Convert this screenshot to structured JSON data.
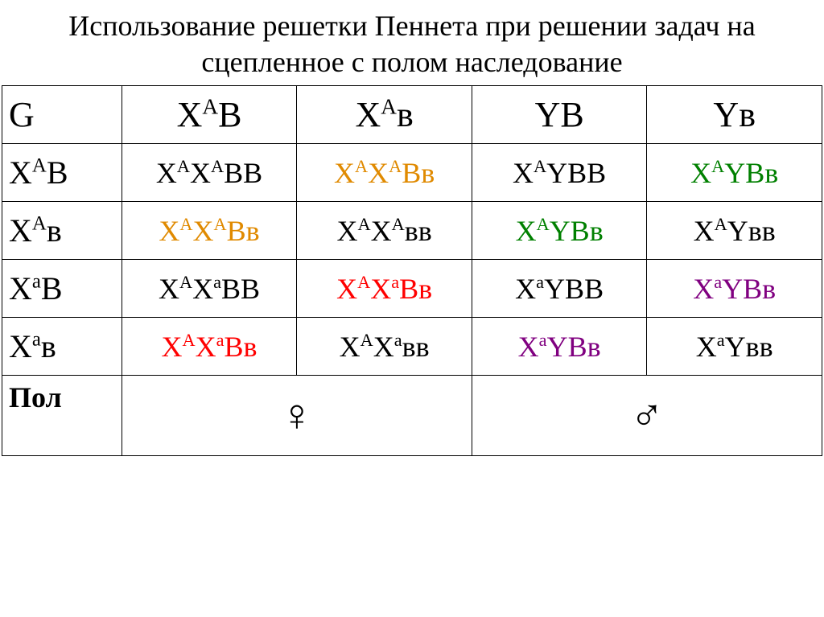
{
  "title": "Использование решетки Пеннета при решении задач на сцепленное с полом наследование",
  "colors": {
    "black": "#000000",
    "orange": "#e08a00",
    "green": "#008000",
    "red": "#ff0000",
    "purple": "#800080"
  },
  "table": {
    "corner": "G",
    "col_headers": [
      {
        "base": [
          "X",
          "B"
        ],
        "sup": [
          "A",
          ""
        ],
        "color": "black"
      },
      {
        "base": [
          "X",
          "в"
        ],
        "sup": [
          "A",
          ""
        ],
        "color": "black"
      },
      {
        "base": [
          "Y",
          "B"
        ],
        "sup": [
          "",
          ""
        ],
        "color": "black"
      },
      {
        "base": [
          "Y",
          "в"
        ],
        "sup": [
          "",
          ""
        ],
        "color": "black"
      }
    ],
    "row_headers": [
      {
        "base": [
          "X",
          "B"
        ],
        "sup": [
          "A",
          ""
        ],
        "color": "black"
      },
      {
        "base": [
          "X",
          "в"
        ],
        "sup": [
          "A",
          ""
        ],
        "color": "black"
      },
      {
        "base": [
          "X",
          "B"
        ],
        "sup": [
          "a",
          ""
        ],
        "color": "black"
      },
      {
        "base": [
          "X",
          "в"
        ],
        "sup": [
          "a",
          ""
        ],
        "color": "black"
      }
    ],
    "cells": [
      [
        {
          "base": [
            "X",
            "X",
            "B",
            "B"
          ],
          "sup": [
            "A",
            "A",
            "",
            ""
          ],
          "color": "black"
        },
        {
          "base": [
            "X",
            "X",
            "B",
            "в"
          ],
          "sup": [
            "A",
            "A",
            "",
            ""
          ],
          "color": "orange"
        },
        {
          "base": [
            "X",
            "Y",
            "B",
            "B"
          ],
          "sup": [
            "A",
            "",
            "",
            ""
          ],
          "color": "black"
        },
        {
          "base": [
            "X",
            "Y",
            "B",
            "в"
          ],
          "sup": [
            "A",
            "",
            "",
            ""
          ],
          "color": "green"
        }
      ],
      [
        {
          "base": [
            "X",
            "X",
            "B",
            "в"
          ],
          "sup": [
            "A",
            "A",
            "",
            ""
          ],
          "color": "orange"
        },
        {
          "base": [
            "X",
            "X",
            "в",
            "в"
          ],
          "sup": [
            "A",
            "A",
            "",
            ""
          ],
          "color": "black"
        },
        {
          "base": [
            "X",
            "Y",
            "B",
            "в"
          ],
          "sup": [
            "A",
            "",
            "",
            ""
          ],
          "color": "green"
        },
        {
          "base": [
            "X",
            "Y",
            "в",
            "в"
          ],
          "sup": [
            "A",
            "",
            "",
            ""
          ],
          "color": "black"
        }
      ],
      [
        {
          "base": [
            "X",
            "X",
            "B",
            "B"
          ],
          "sup": [
            "A",
            "a",
            "",
            ""
          ],
          "color": "black"
        },
        {
          "base": [
            "X",
            "X",
            "B",
            "в"
          ],
          "sup": [
            "A",
            "a",
            "",
            ""
          ],
          "color": "red"
        },
        {
          "base": [
            "X",
            "Y",
            "B",
            "B"
          ],
          "sup": [
            "a",
            "",
            "",
            ""
          ],
          "color": "black"
        },
        {
          "base": [
            "X",
            "Y",
            "B",
            "в"
          ],
          "sup": [
            "a",
            "",
            "",
            ""
          ],
          "color": "purple"
        }
      ],
      [
        {
          "base": [
            "X",
            "X",
            "B",
            "в"
          ],
          "sup": [
            "A",
            "a",
            "",
            ""
          ],
          "color": "red"
        },
        {
          "base": [
            "X",
            "X",
            "в",
            "в"
          ],
          "sup": [
            "A",
            "a",
            "",
            ""
          ],
          "color": "black"
        },
        {
          "base": [
            "X",
            "Y",
            "B",
            "в"
          ],
          "sup": [
            "a",
            "",
            "",
            ""
          ],
          "color": "purple"
        },
        {
          "base": [
            "X",
            "Y",
            "в",
            "в"
          ],
          "sup": [
            "a",
            "",
            "",
            ""
          ],
          "color": "black"
        }
      ]
    ],
    "sex_row": {
      "label": "Пол",
      "female_symbol": "♀",
      "male_symbol": "♂"
    }
  }
}
